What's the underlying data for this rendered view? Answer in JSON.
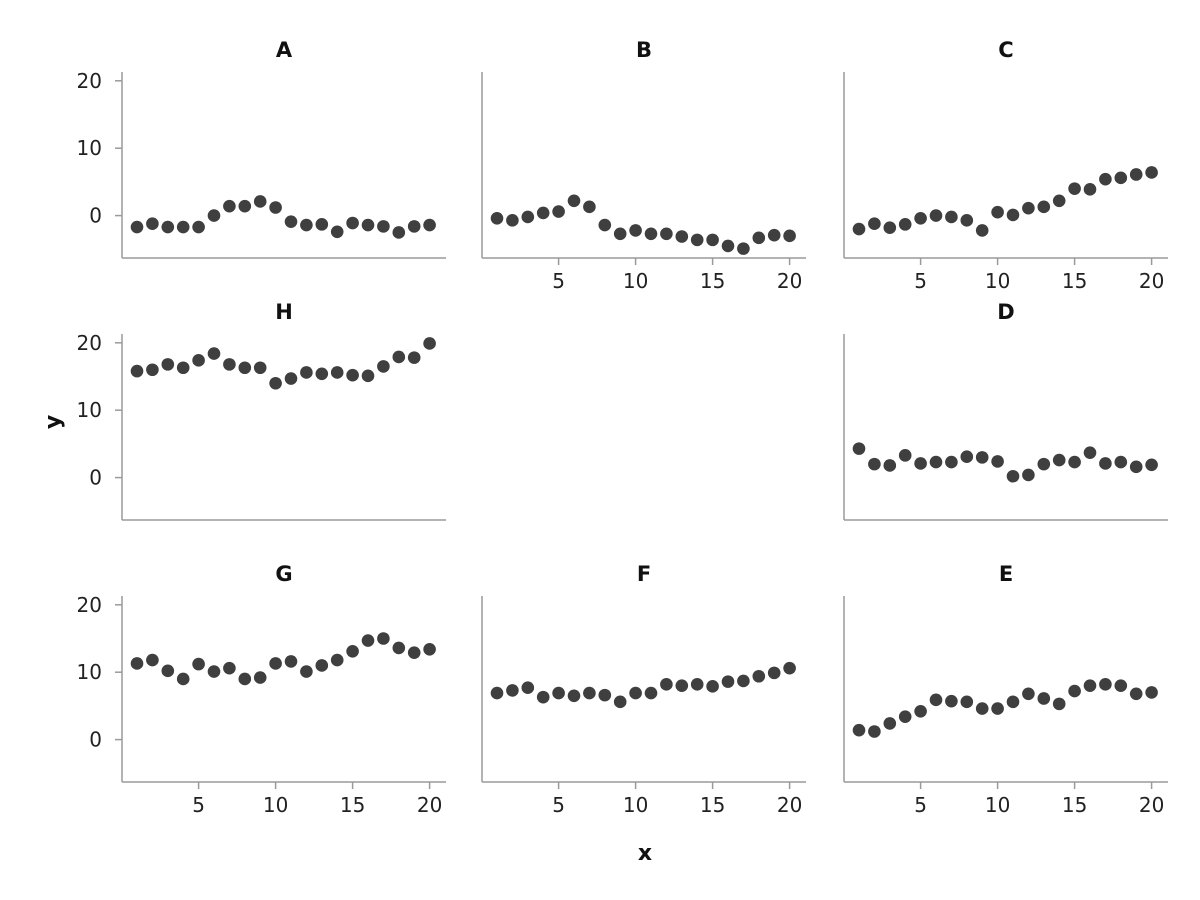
{
  "chart_data": {
    "type": "scatter",
    "xlabel": "x",
    "ylabel": "y",
    "xlim": [
      0,
      21
    ],
    "ylim": [
      -6,
      21
    ],
    "xticks": [
      "5",
      "10",
      "15",
      "20"
    ],
    "yticks": [
      "0",
      "10",
      "20"
    ],
    "grid": false,
    "point_color": "#3f3f3f",
    "x": [
      1,
      2,
      3,
      4,
      5,
      6,
      7,
      8,
      9,
      10,
      11,
      12,
      13,
      14,
      15,
      16,
      17,
      18,
      19,
      20
    ],
    "panels": [
      {
        "title": "A",
        "values": [
          -1.7,
          -1.2,
          -1.7,
          -1.7,
          -1.7,
          0.0,
          1.4,
          1.4,
          2.1,
          1.2,
          -0.9,
          -1.4,
          -1.3,
          -2.4,
          -1.1,
          -1.4,
          -1.6,
          -2.5,
          -1.6,
          -1.4
        ]
      },
      {
        "title": "B",
        "values": [
          -0.4,
          -0.7,
          -0.2,
          0.4,
          0.6,
          2.2,
          1.3,
          -1.4,
          -2.7,
          -2.2,
          -2.7,
          -2.7,
          -3.1,
          -3.6,
          -3.6,
          -4.5,
          -4.9,
          -3.3,
          -2.9,
          -3.0
        ]
      },
      {
        "title": "C",
        "values": [
          -2.0,
          -1.2,
          -1.8,
          -1.3,
          -0.4,
          0.0,
          -0.2,
          -0.7,
          -2.2,
          0.5,
          0.1,
          1.1,
          1.3,
          2.2,
          4.0,
          3.9,
          5.4,
          5.6,
          6.1,
          6.4
        ]
      },
      {
        "title": "H",
        "values": [
          15.8,
          16.0,
          16.8,
          16.3,
          17.4,
          18.4,
          16.8,
          16.3,
          16.3,
          14.0,
          14.7,
          15.6,
          15.4,
          15.6,
          15.2,
          15.1,
          16.5,
          17.9,
          17.8,
          19.9
        ]
      },
      {
        "title": "D",
        "values": [
          4.3,
          2.0,
          1.8,
          3.3,
          2.1,
          2.3,
          2.3,
          3.1,
          3.0,
          2.4,
          0.2,
          0.4,
          2.0,
          2.6,
          2.3,
          3.7,
          2.1,
          2.3,
          1.6,
          1.9
        ]
      },
      {
        "title": "G",
        "values": [
          11.3,
          11.8,
          10.2,
          9.0,
          11.2,
          10.1,
          10.6,
          9.0,
          9.2,
          11.3,
          11.6,
          10.1,
          11.0,
          11.8,
          13.1,
          14.7,
          15.0,
          13.6,
          12.9,
          13.4
        ]
      },
      {
        "title": "F",
        "values": [
          6.9,
          7.3,
          7.7,
          6.3,
          6.9,
          6.5,
          6.9,
          6.6,
          5.6,
          6.9,
          6.9,
          8.2,
          8.0,
          8.2,
          7.9,
          8.6,
          8.7,
          9.4,
          9.9,
          10.6
        ]
      },
      {
        "title": "E",
        "values": [
          1.4,
          1.2,
          2.4,
          3.4,
          4.2,
          5.9,
          5.7,
          5.6,
          4.6,
          4.6,
          5.6,
          6.8,
          6.1,
          5.3,
          7.2,
          8.0,
          8.2,
          8.0,
          6.8,
          7.0
        ]
      }
    ]
  }
}
